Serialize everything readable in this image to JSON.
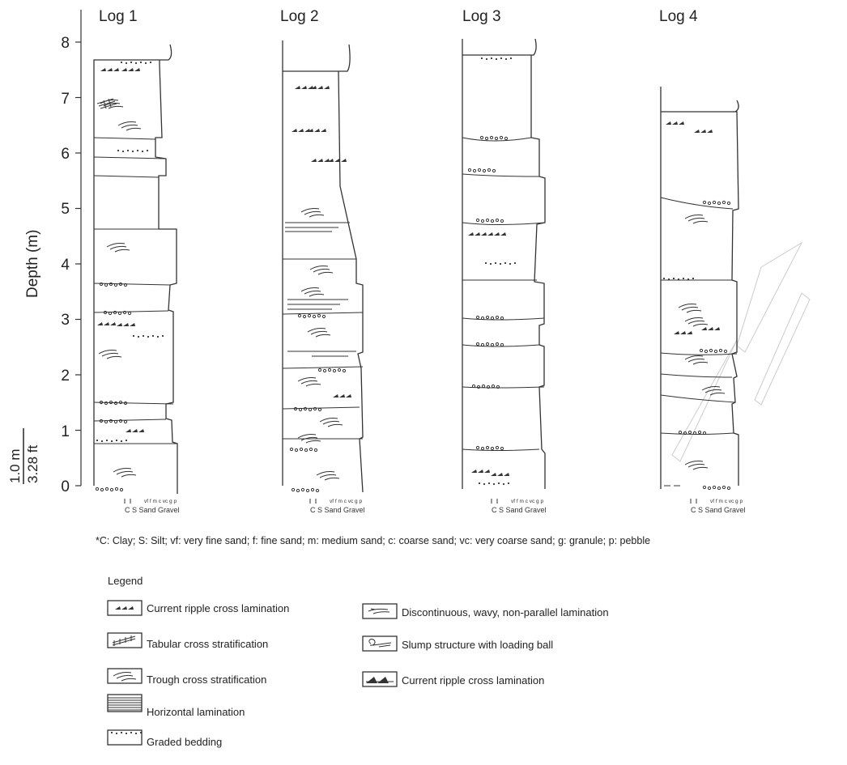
{
  "figure": {
    "y_axis": {
      "title": "Depth (m)",
      "ticks": [
        "0",
        "1",
        "2",
        "3",
        "4",
        "5",
        "6",
        "7",
        "8"
      ],
      "range_m": [
        0,
        8
      ]
    },
    "scale_bar": {
      "metric": "1.0 m",
      "imperial": "3.28 ft"
    },
    "logs": [
      {
        "id": "log1",
        "title": "Log 1",
        "top_depth_m": 7.7
      },
      {
        "id": "log2",
        "title": "Log 2",
        "top_depth_m": 7.5
      },
      {
        "id": "log3",
        "title": "Log 3",
        "top_depth_m": 7.8
      },
      {
        "id": "log4",
        "title": "Log 4",
        "top_depth_m": 6.8
      }
    ],
    "grain_size_scale": {
      "small": [
        "C",
        "S",
        "vf",
        "f",
        "m",
        "c",
        "vc",
        "g",
        "p"
      ],
      "main": "C S  Sand Gravel"
    },
    "footnote": "*C: Clay; S: Silt; vf: very fine sand; f: fine sand; m: medium sand; c: coarse sand; vc: very coarse sand; g: granule; p: pebble"
  },
  "legend": {
    "title": "Legend",
    "items": [
      {
        "symbol": "current-ripple-icon",
        "label": "Current ripple cross lamination"
      },
      {
        "symbol": "tabular-cross-icon",
        "label": "Tabular cross stratification"
      },
      {
        "symbol": "trough-cross-icon",
        "label": "Trough cross stratification"
      },
      {
        "symbol": "horizontal-lamination-icon",
        "label": "Horizontal lamination"
      },
      {
        "symbol": "graded-bedding-icon",
        "label": "Graded bedding"
      },
      {
        "symbol": "wavy-lamination-icon",
        "label": "Discontinuous, wavy, non-parallel lamination"
      },
      {
        "symbol": "slump-structure-icon",
        "label": "Slump structure with loading ball"
      },
      {
        "symbol": "current-ripple-2-icon",
        "label": "Current ripple cross lamination"
      }
    ]
  }
}
